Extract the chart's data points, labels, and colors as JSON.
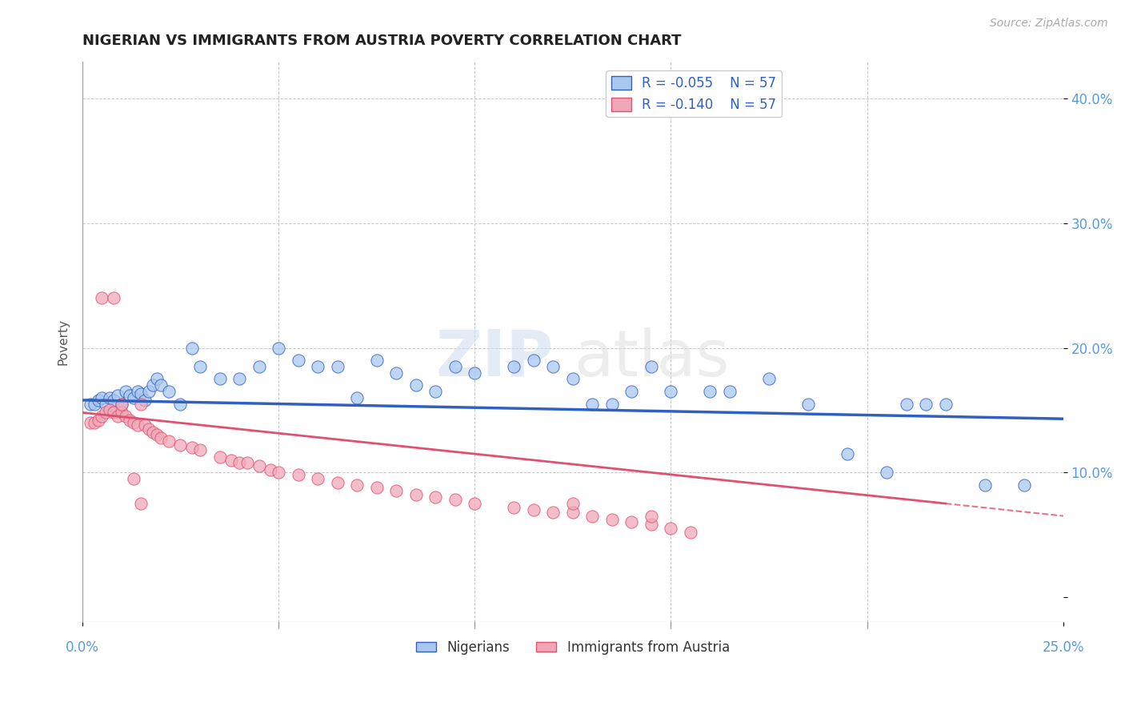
{
  "title": "NIGERIAN VS IMMIGRANTS FROM AUSTRIA POVERTY CORRELATION CHART",
  "source": "Source: ZipAtlas.com",
  "ylabel": "Poverty",
  "xlim": [
    0.0,
    0.25
  ],
  "ylim": [
    -0.02,
    0.43
  ],
  "yticks": [
    0.0,
    0.1,
    0.2,
    0.3,
    0.4
  ],
  "ytick_labels": [
    "",
    "10.0%",
    "20.0%",
    "30.0%",
    "40.0%"
  ],
  "background_color": "#ffffff",
  "grid_color": "#c8c8c8",
  "blue_color": "#a8c8f0",
  "pink_color": "#f0a8b8",
  "blue_line_color": "#3060c0",
  "pink_line_color": "#e05070",
  "watermark_zip": "ZIP",
  "watermark_atlas": "atlas",
  "title_fontsize": 13,
  "tick_color": "#5b9bd5",
  "blue_scatter_x": [
    0.002,
    0.003,
    0.004,
    0.005,
    0.006,
    0.007,
    0.008,
    0.009,
    0.01,
    0.011,
    0.012,
    0.013,
    0.014,
    0.015,
    0.016,
    0.017,
    0.018,
    0.019,
    0.02,
    0.022,
    0.025,
    0.028,
    0.03,
    0.035,
    0.04,
    0.045,
    0.05,
    0.055,
    0.06,
    0.065,
    0.07,
    0.075,
    0.08,
    0.085,
    0.09,
    0.095,
    0.1,
    0.11,
    0.115,
    0.12,
    0.125,
    0.13,
    0.135,
    0.14,
    0.145,
    0.15,
    0.16,
    0.165,
    0.175,
    0.185,
    0.195,
    0.21,
    0.22,
    0.23,
    0.24,
    0.215,
    0.205
  ],
  "blue_scatter_y": [
    0.155,
    0.155,
    0.158,
    0.16,
    0.155,
    0.16,
    0.158,
    0.162,
    0.155,
    0.165,
    0.162,
    0.16,
    0.165,
    0.163,
    0.158,
    0.165,
    0.17,
    0.175,
    0.17,
    0.165,
    0.155,
    0.2,
    0.185,
    0.175,
    0.175,
    0.185,
    0.2,
    0.19,
    0.185,
    0.185,
    0.16,
    0.19,
    0.18,
    0.17,
    0.165,
    0.185,
    0.18,
    0.185,
    0.19,
    0.185,
    0.175,
    0.155,
    0.155,
    0.165,
    0.185,
    0.165,
    0.165,
    0.165,
    0.175,
    0.155,
    0.115,
    0.155,
    0.155,
    0.09,
    0.09,
    0.155,
    0.1
  ],
  "pink_scatter_x": [
    0.002,
    0.003,
    0.004,
    0.005,
    0.006,
    0.007,
    0.008,
    0.009,
    0.01,
    0.011,
    0.012,
    0.013,
    0.014,
    0.015,
    0.016,
    0.017,
    0.018,
    0.019,
    0.02,
    0.022,
    0.025,
    0.028,
    0.03,
    0.035,
    0.038,
    0.04,
    0.042,
    0.045,
    0.048,
    0.05,
    0.055,
    0.06,
    0.065,
    0.07,
    0.075,
    0.08,
    0.085,
    0.09,
    0.095,
    0.1,
    0.11,
    0.115,
    0.12,
    0.125,
    0.13,
    0.135,
    0.14,
    0.145,
    0.15,
    0.155,
    0.005,
    0.008,
    0.01,
    0.013,
    0.015,
    0.125,
    0.145
  ],
  "pink_scatter_y": [
    0.14,
    0.14,
    0.142,
    0.145,
    0.148,
    0.15,
    0.148,
    0.145,
    0.148,
    0.145,
    0.142,
    0.14,
    0.138,
    0.155,
    0.138,
    0.135,
    0.132,
    0.13,
    0.128,
    0.125,
    0.122,
    0.12,
    0.118,
    0.112,
    0.11,
    0.108,
    0.108,
    0.105,
    0.102,
    0.1,
    0.098,
    0.095,
    0.092,
    0.09,
    0.088,
    0.085,
    0.082,
    0.08,
    0.078,
    0.075,
    0.072,
    0.07,
    0.068,
    0.068,
    0.065,
    0.062,
    0.06,
    0.058,
    0.055,
    0.052,
    0.24,
    0.24,
    0.155,
    0.095,
    0.075,
    0.075,
    0.065
  ],
  "blue_trend_x": [
    0.0,
    0.25
  ],
  "blue_trend_y": [
    0.158,
    0.143
  ],
  "pink_trend_x": [
    0.0,
    0.25
  ],
  "pink_trend_y": [
    0.148,
    0.065
  ]
}
